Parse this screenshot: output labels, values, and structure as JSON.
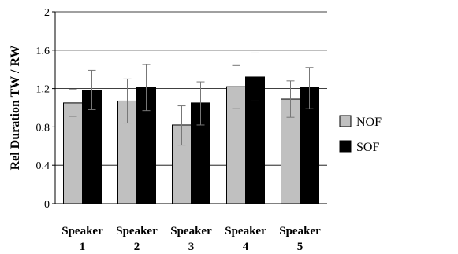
{
  "chart_data": {
    "type": "bar",
    "title": "",
    "xlabel": "",
    "ylabel": "Rel Duration TW / RW",
    "ylim": [
      0,
      2
    ],
    "yticks": [
      "0",
      "0.4",
      "0.8",
      "1.2",
      "1.6",
      "2"
    ],
    "ytick_values": [
      0,
      0.4,
      0.8,
      1.2,
      1.6,
      2
    ],
    "grid": true,
    "legend_position": "right",
    "categories": [
      [
        "Speaker",
        "1"
      ],
      [
        "Speaker",
        "2"
      ],
      [
        "Speaker",
        "3"
      ],
      [
        "Speaker",
        "4"
      ],
      [
        "Speaker",
        "5"
      ]
    ],
    "series": [
      {
        "name": "NOF",
        "color": "#c0c0c0",
        "values": [
          1.05,
          1.07,
          0.82,
          1.22,
          1.09
        ],
        "error_low": [
          0.91,
          0.84,
          0.61,
          0.99,
          0.9
        ],
        "error_high": [
          1.19,
          1.3,
          1.02,
          1.44,
          1.28
        ]
      },
      {
        "name": "SOF",
        "color": "#000000",
        "values": [
          1.18,
          1.21,
          1.05,
          1.32,
          1.21
        ],
        "error_low": [
          0.98,
          0.97,
          0.82,
          1.07,
          0.99
        ],
        "error_high": [
          1.39,
          1.45,
          1.27,
          1.57,
          1.42
        ]
      }
    ]
  }
}
